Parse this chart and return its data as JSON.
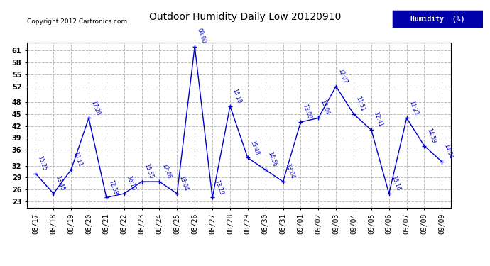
{
  "title": "Outdoor Humidity Daily Low 20120910",
  "copyright": "Copyright 2012 Cartronics.com",
  "legend_label": "Humidity  (%)",
  "yticks": [
    23,
    26,
    29,
    32,
    36,
    39,
    42,
    45,
    48,
    52,
    55,
    58,
    61
  ],
  "ylim": [
    21.5,
    63
  ],
  "background_color": "#ffffff",
  "line_color": "#0000cc",
  "grid_color": "#bbbbbb",
  "dates": [
    "08/17",
    "08/18",
    "08/19",
    "08/20",
    "08/21",
    "08/22",
    "08/23",
    "08/24",
    "08/25",
    "08/26",
    "08/27",
    "08/28",
    "08/29",
    "08/30",
    "08/31",
    "09/01",
    "09/02",
    "09/03",
    "09/04",
    "09/05",
    "09/06",
    "09/07",
    "09/08",
    "09/09"
  ],
  "values": [
    30,
    25,
    31,
    44,
    24,
    25,
    28,
    28,
    25,
    62,
    24,
    47,
    34,
    31,
    28,
    43,
    44,
    52,
    45,
    41,
    25,
    44,
    37,
    33
  ],
  "labels": [
    "15:25",
    "13:45",
    "10:11",
    "17:20",
    "12:58",
    "16:10",
    "15:55",
    "12:46",
    "13:04",
    "00:00",
    "13:29",
    "15:18",
    "15:48",
    "14:56",
    "13:04",
    "13:09",
    "15:04",
    "12:07",
    "11:51",
    "12:41",
    "15:16",
    "11:22",
    "14:59",
    "14:04"
  ],
  "label_colors": [
    "#0000cc",
    "#0000cc",
    "#0000cc",
    "#0000cc",
    "#0000cc",
    "#0000cc",
    "#0000cc",
    "#0000cc",
    "#0000cc",
    "#0000ff",
    "#0000cc",
    "#0000cc",
    "#0000cc",
    "#0000cc",
    "#0000cc",
    "#0000cc",
    "#0000cc",
    "#0000cc",
    "#0000cc",
    "#0000cc",
    "#0000cc",
    "#0000cc",
    "#0000cc",
    "#0000cc"
  ]
}
